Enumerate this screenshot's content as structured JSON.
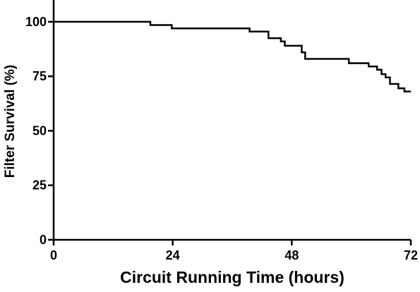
{
  "chart_data": {
    "type": "line",
    "subtype": "step",
    "title": "",
    "xlabel": "Circuit Running Time (hours)",
    "ylabel": "Filter Survival (%)",
    "xlim": [
      0,
      72
    ],
    "ylim": [
      0,
      110
    ],
    "xticks": [
      0,
      24,
      48,
      72
    ],
    "yticks": [
      0,
      25,
      50,
      75,
      100
    ],
    "grid": false,
    "series": [
      {
        "points": [
          [
            0,
            100
          ],
          [
            19.5,
            100
          ],
          [
            19.5,
            98.5
          ],
          [
            23.8,
            98.5
          ],
          [
            23.8,
            97
          ],
          [
            39.5,
            97
          ],
          [
            39.5,
            95.5
          ],
          [
            43.3,
            95.5
          ],
          [
            43.3,
            92.5
          ],
          [
            45.8,
            92.5
          ],
          [
            45.8,
            91
          ],
          [
            46.6,
            91
          ],
          [
            46.6,
            89
          ],
          [
            50,
            89
          ],
          [
            50,
            86
          ],
          [
            50.7,
            86
          ],
          [
            50.7,
            83
          ],
          [
            59.5,
            83
          ],
          [
            59.5,
            81
          ],
          [
            63.5,
            81
          ],
          [
            63.5,
            79.5
          ],
          [
            65.2,
            79.5
          ],
          [
            65.2,
            78
          ],
          [
            66.1,
            78
          ],
          [
            66.1,
            76
          ],
          [
            66.9,
            76
          ],
          [
            66.9,
            74.5
          ],
          [
            67.8,
            74.5
          ],
          [
            67.8,
            71.5
          ],
          [
            69.5,
            71.5
          ],
          [
            69.5,
            69.5
          ],
          [
            70.7,
            69.5
          ],
          [
            70.7,
            68
          ],
          [
            72,
            68
          ]
        ]
      }
    ]
  }
}
